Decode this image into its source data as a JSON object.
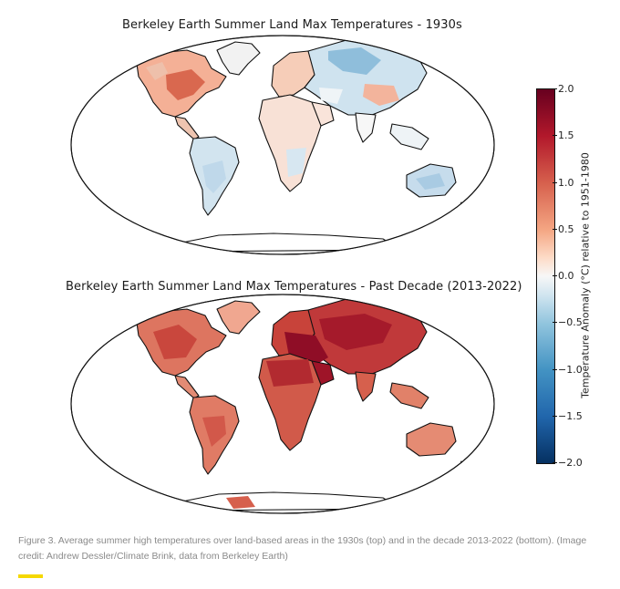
{
  "maps": [
    {
      "title": "Berkeley Earth Summer Land Max Temperatures - 1930s"
    },
    {
      "title": "Berkeley Earth Summer Land Max Temperatures - Past Decade (2013-2022)"
    }
  ],
  "colorbar": {
    "label": "Temperature Anomaly (°C) relative to 1951-1980",
    "range": [
      -2.0,
      2.0
    ],
    "ticks": [
      "2.0",
      "1.5",
      "1.0",
      "0.5",
      "0.0",
      "−0.5",
      "−1.0",
      "−1.5",
      "−2.0"
    ],
    "colormap": [
      "#053061",
      "#2166ac",
      "#4393c3",
      "#92c5de",
      "#d1e5f0",
      "#f7f7f7",
      "#fddbc7",
      "#f4a582",
      "#d6604d",
      "#b2182b",
      "#67001f"
    ]
  },
  "caption": "Figure 3. Average summer high temperatures over land-based areas in the 1930s (top) and in the decade 2013-2022 (bottom). (Image credit: Andrew Dessler/Climate Brink, data from Berkeley Earth)",
  "accent_color": "#f5d800"
}
